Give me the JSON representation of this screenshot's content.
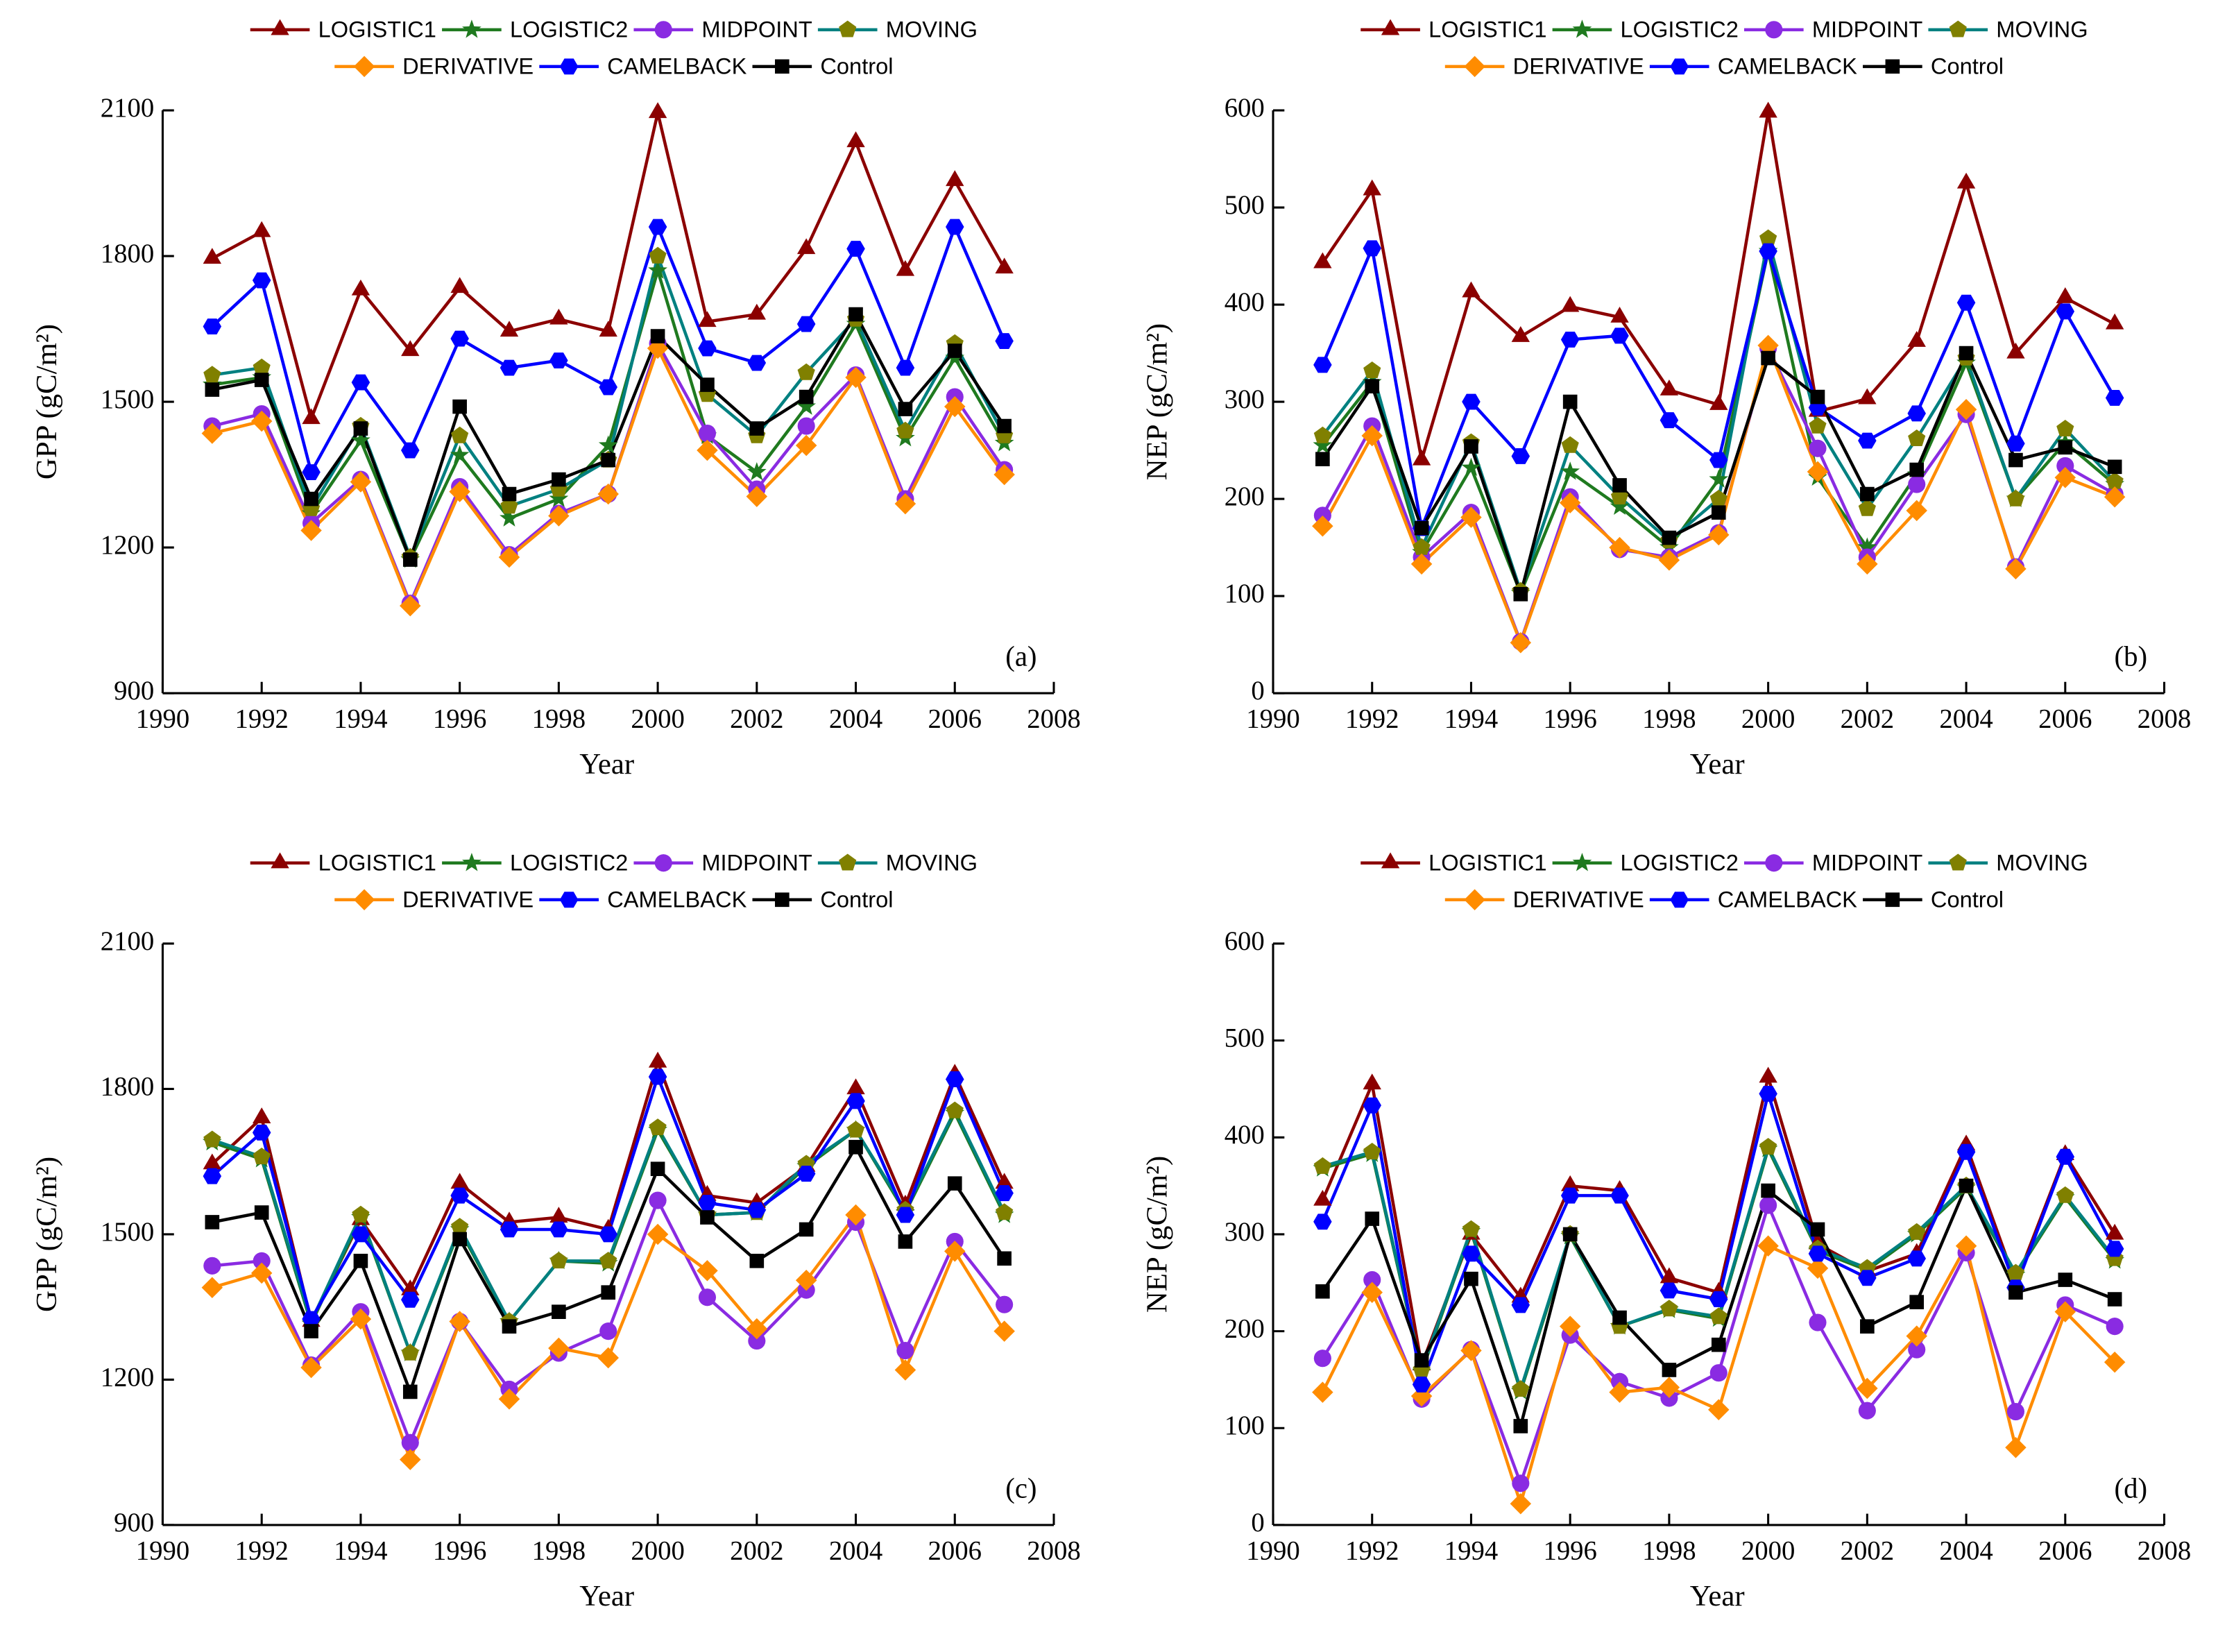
{
  "chart_data": [
    {
      "type": "line",
      "panel_label": "(a)",
      "xlabel": "Year",
      "ylabel": "GPP (gC/m²)",
      "x": [
        1991,
        1992,
        1993,
        1994,
        1995,
        1996,
        1997,
        1998,
        1999,
        2000,
        2001,
        2002,
        2003,
        2004,
        2005,
        2006,
        2007
      ],
      "xlim": [
        1990,
        2008
      ],
      "xticks": [
        1990,
        1992,
        1994,
        1996,
        1998,
        2000,
        2002,
        2004,
        2006,
        2008
      ],
      "ylim": [
        900,
        2100
      ],
      "yticks": [
        900,
        1200,
        1500,
        1800,
        2100
      ],
      "series": [
        {
          "name": "LOGISTIC1",
          "color": "#8b0000",
          "marker": "triangle",
          "values": [
            1795,
            1850,
            1465,
            1730,
            1605,
            1735,
            1645,
            1670,
            1645,
            2095,
            1665,
            1680,
            1815,
            2035,
            1770,
            1955,
            1775
          ]
        },
        {
          "name": "LOGISTIC2",
          "color": "#1f7a1f",
          "marker": "star",
          "values": [
            1535,
            1550,
            1270,
            1420,
            1175,
            1390,
            1260,
            1300,
            1410,
            1770,
            1430,
            1355,
            1490,
            1660,
            1425,
            1590,
            1415
          ]
        },
        {
          "name": "MIDPOINT",
          "color": "#8a2be2",
          "marker": "circle",
          "values": [
            1450,
            1475,
            1250,
            1340,
            1085,
            1325,
            1185,
            1270,
            1310,
            1620,
            1435,
            1320,
            1450,
            1555,
            1300,
            1510,
            1360
          ]
        },
        {
          "name": "MOVING",
          "color": "#008080",
          "marker_color": "#808000",
          "marker": "pentagon",
          "values": [
            1555,
            1570,
            1280,
            1450,
            1180,
            1430,
            1285,
            1320,
            1380,
            1800,
            1515,
            1430,
            1560,
            1670,
            1440,
            1620,
            1430
          ]
        },
        {
          "name": "DERIVATIVE",
          "color": "#ff8c00",
          "marker": "diamond",
          "values": [
            1435,
            1460,
            1235,
            1335,
            1080,
            1315,
            1180,
            1265,
            1310,
            1610,
            1400,
            1305,
            1410,
            1550,
            1290,
            1490,
            1350
          ]
        },
        {
          "name": "CAMELBACK",
          "color": "#0000ff",
          "marker": "hexagon",
          "values": [
            1655,
            1750,
            1355,
            1540,
            1400,
            1630,
            1570,
            1585,
            1530,
            1860,
            1610,
            1580,
            1660,
            1815,
            1570,
            1860,
            1625
          ]
        },
        {
          "name": "Control",
          "color": "#000000",
          "marker": "square",
          "values": [
            1525,
            1545,
            1300,
            1445,
            1175,
            1490,
            1310,
            1340,
            1380,
            1635,
            1535,
            1445,
            1510,
            1680,
            1485,
            1605,
            1450
          ]
        }
      ]
    },
    {
      "type": "line",
      "panel_label": "(b)",
      "xlabel": "Year",
      "ylabel": "NEP (gC/m²)",
      "x": [
        1991,
        1992,
        1993,
        1994,
        1995,
        1996,
        1997,
        1998,
        1999,
        2000,
        2001,
        2002,
        2003,
        2004,
        2005,
        2006,
        2007
      ],
      "xlim": [
        1990,
        2008
      ],
      "xticks": [
        1990,
        1992,
        1994,
        1996,
        1998,
        2000,
        2002,
        2004,
        2006,
        2008
      ],
      "ylim": [
        0,
        600
      ],
      "yticks": [
        0,
        100,
        200,
        300,
        400,
        500,
        600
      ],
      "series": [
        {
          "name": "LOGISTIC1",
          "color": "#8b0000",
          "marker": "triangle",
          "values": [
            443,
            518,
            240,
            413,
            367,
            398,
            387,
            312,
            297,
            598,
            290,
            303,
            362,
            525,
            350,
            407,
            380
          ]
        },
        {
          "name": "LOGISTIC2",
          "color": "#1f7a1f",
          "marker": "star",
          "values": [
            255,
            320,
            145,
            232,
            103,
            228,
            192,
            150,
            220,
            455,
            222,
            150,
            225,
            340,
            200,
            258,
            215
          ]
        },
        {
          "name": "MIDPOINT",
          "color": "#8a2be2",
          "marker": "circle",
          "values": [
            183,
            275,
            140,
            186,
            53,
            202,
            148,
            140,
            165,
            355,
            252,
            140,
            215,
            287,
            130,
            234,
            205
          ]
        },
        {
          "name": "MOVING",
          "color": "#008080",
          "marker_color": "#808000",
          "marker": "pentagon",
          "values": [
            265,
            332,
            150,
            258,
            105,
            255,
            202,
            157,
            200,
            468,
            275,
            190,
            262,
            345,
            200,
            272,
            218
          ]
        },
        {
          "name": "DERIVATIVE",
          "color": "#ff8c00",
          "marker": "diamond",
          "values": [
            172,
            265,
            133,
            181,
            52,
            196,
            150,
            137,
            163,
            358,
            228,
            133,
            188,
            292,
            128,
            222,
            202
          ]
        },
        {
          "name": "CAMELBACK",
          "color": "#0000ff",
          "marker": "hexagon",
          "values": [
            338,
            458,
            170,
            300,
            244,
            364,
            368,
            281,
            240,
            455,
            294,
            260,
            288,
            402,
            257,
            393,
            304
          ]
        },
        {
          "name": "Control",
          "color": "#000000",
          "marker": "square",
          "values": [
            241,
            316,
            170,
            254,
            102,
            300,
            214,
            160,
            186,
            345,
            305,
            205,
            230,
            350,
            240,
            253,
            233
          ]
        }
      ]
    },
    {
      "type": "line",
      "panel_label": "(c)",
      "xlabel": "Year",
      "ylabel": "GPP (gC/m²)",
      "x": [
        1991,
        1992,
        1993,
        1994,
        1995,
        1996,
        1997,
        1998,
        1999,
        2000,
        2001,
        2002,
        2003,
        2004,
        2005,
        2006,
        2007
      ],
      "xlim": [
        1990,
        2008
      ],
      "xticks": [
        1990,
        1992,
        1994,
        1996,
        1998,
        2000,
        2002,
        2004,
        2006,
        2008
      ],
      "ylim": [
        900,
        2100
      ],
      "yticks": [
        900,
        1200,
        1500,
        1800,
        2100
      ],
      "series": [
        {
          "name": "LOGISTIC1",
          "color": "#8b0000",
          "marker": "triangle",
          "values": [
            1645,
            1740,
            1320,
            1530,
            1385,
            1605,
            1525,
            1535,
            1510,
            1855,
            1580,
            1565,
            1640,
            1800,
            1560,
            1830,
            1605
          ]
        },
        {
          "name": "LOGISTIC2",
          "color": "#1f7a1f",
          "marker": "star",
          "values": [
            1690,
            1655,
            1315,
            1535,
            1255,
            1510,
            1320,
            1445,
            1440,
            1715,
            1540,
            1545,
            1640,
            1715,
            1545,
            1750,
            1540
          ]
        },
        {
          "name": "MIDPOINT",
          "color": "#8a2be2",
          "marker": "circle",
          "values": [
            1435,
            1445,
            1230,
            1340,
            1070,
            1320,
            1180,
            1255,
            1300,
            1570,
            1370,
            1280,
            1385,
            1525,
            1260,
            1485,
            1355
          ]
        },
        {
          "name": "MOVING",
          "color": "#008080",
          "marker_color": "#808000",
          "marker": "pentagon",
          "values": [
            1695,
            1660,
            1320,
            1540,
            1255,
            1515,
            1320,
            1445,
            1445,
            1720,
            1540,
            1545,
            1645,
            1715,
            1550,
            1755,
            1545
          ]
        },
        {
          "name": "DERIVATIVE",
          "color": "#ff8c00",
          "marker": "diamond",
          "values": [
            1390,
            1420,
            1225,
            1325,
            1035,
            1320,
            1160,
            1265,
            1245,
            1500,
            1425,
            1305,
            1405,
            1540,
            1220,
            1465,
            1300
          ]
        },
        {
          "name": "CAMELBACK",
          "color": "#0000ff",
          "marker": "hexagon",
          "values": [
            1620,
            1710,
            1325,
            1500,
            1365,
            1580,
            1510,
            1510,
            1500,
            1825,
            1565,
            1550,
            1625,
            1775,
            1540,
            1820,
            1585
          ]
        },
        {
          "name": "Control",
          "color": "#000000",
          "marker": "square",
          "values": [
            1525,
            1545,
            1300,
            1445,
            1175,
            1490,
            1310,
            1340,
            1380,
            1635,
            1535,
            1445,
            1510,
            1680,
            1485,
            1605,
            1450
          ]
        }
      ]
    },
    {
      "type": "line",
      "panel_label": "(d)",
      "xlabel": "Year",
      "ylabel": "NEP (gC/m²)",
      "x": [
        1991,
        1992,
        1993,
        1994,
        1995,
        1996,
        1997,
        1998,
        1999,
        2000,
        2001,
        2002,
        2003,
        2004,
        2005,
        2006,
        2007
      ],
      "xlim": [
        1990,
        2008
      ],
      "xticks": [
        1990,
        1992,
        1994,
        1996,
        1998,
        2000,
        2002,
        2004,
        2006,
        2008
      ],
      "ylim": [
        0,
        600
      ],
      "yticks": [
        0,
        100,
        200,
        300,
        400,
        500,
        600
      ],
      "series": [
        {
          "name": "LOGISTIC1",
          "color": "#8b0000",
          "marker": "triangle",
          "values": [
            335,
            455,
            165,
            300,
            235,
            350,
            345,
            255,
            240,
            462,
            290,
            262,
            280,
            392,
            250,
            382,
            300
          ]
        },
        {
          "name": "LOGISTIC2",
          "color": "#1f7a1f",
          "marker": "star",
          "values": [
            368,
            383,
            158,
            303,
            138,
            298,
            205,
            222,
            213,
            388,
            283,
            263,
            300,
            348,
            258,
            338,
            273
          ]
        },
        {
          "name": "MIDPOINT",
          "color": "#8a2be2",
          "marker": "circle",
          "values": [
            172,
            253,
            130,
            181,
            43,
            196,
            148,
            131,
            157,
            330,
            209,
            118,
            181,
            281,
            117,
            227,
            205
          ]
        },
        {
          "name": "MOVING",
          "color": "#008080",
          "marker_color": "#808000",
          "marker": "pentagon",
          "values": [
            370,
            385,
            160,
            305,
            140,
            300,
            205,
            223,
            215,
            390,
            285,
            265,
            302,
            350,
            260,
            340,
            275
          ]
        },
        {
          "name": "DERIVATIVE",
          "color": "#ff8c00",
          "marker": "diamond",
          "values": [
            137,
            240,
            133,
            180,
            22,
            205,
            137,
            142,
            119,
            288,
            265,
            141,
            195,
            288,
            80,
            220,
            168
          ]
        },
        {
          "name": "CAMELBACK",
          "color": "#0000ff",
          "marker": "hexagon",
          "values": [
            313,
            433,
            145,
            280,
            227,
            340,
            340,
            242,
            233,
            445,
            280,
            255,
            275,
            385,
            245,
            380,
            285
          ]
        },
        {
          "name": "Control",
          "color": "#000000",
          "marker": "square",
          "values": [
            241,
            316,
            170,
            254,
            102,
            300,
            214,
            160,
            186,
            345,
            305,
            205,
            230,
            350,
            240,
            253,
            233
          ]
        }
      ]
    }
  ]
}
